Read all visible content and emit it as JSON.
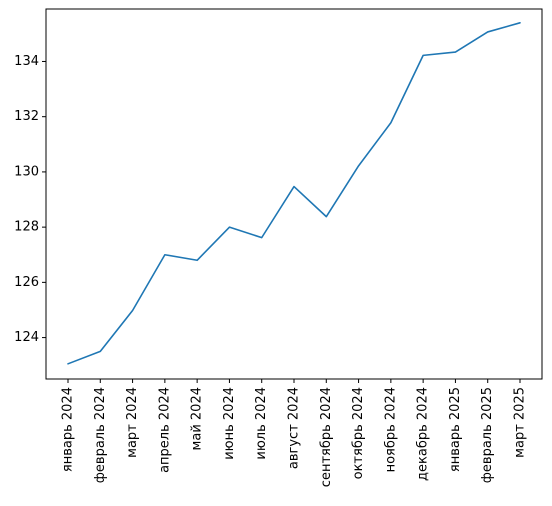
{
  "chart_data": {
    "type": "line",
    "title": "",
    "xlabel": "",
    "ylabel": "",
    "categories": [
      "январь 2024",
      "февраль 2024",
      "март 2024",
      "апрель 2024",
      "май 2024",
      "июнь 2024",
      "июль 2024",
      "август 2024",
      "сентябрь 2024",
      "октябрь 2024",
      "ноябрь 2024",
      "декабрь 2024",
      "январь 2025",
      "февраль 2025",
      "март 2025"
    ],
    "series": [
      {
        "values": [
          123.05,
          123.5,
          124.98,
          127.0,
          126.8,
          128.0,
          127.62,
          129.47,
          128.38,
          130.22,
          131.78,
          134.22,
          134.34,
          135.07,
          135.4
        ],
        "color": "#1f77b4"
      }
    ],
    "ylim": [
      122.5,
      135.9
    ],
    "yticks": [
      124,
      126,
      128,
      130,
      132,
      134
    ],
    "grid": false,
    "legend": "none"
  }
}
